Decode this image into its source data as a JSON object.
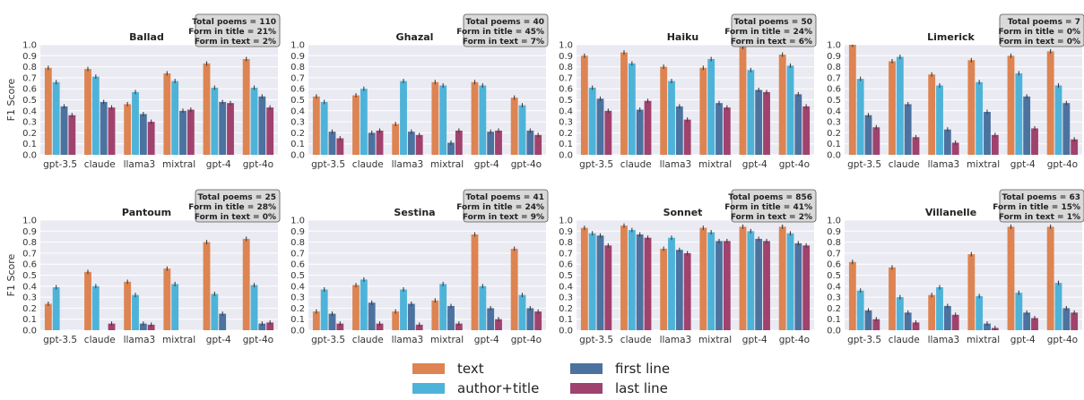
{
  "series_meta": [
    {
      "key": "text",
      "name": "text",
      "color": "#dd8452"
    },
    {
      "key": "author_title",
      "name": "author+title",
      "color": "#4eb3d8"
    },
    {
      "key": "first_line",
      "name": "first line",
      "color": "#4c72a0"
    },
    {
      "key": "last_line",
      "name": "last line",
      "color": "#a0426e"
    }
  ],
  "chart_data": [
    {
      "type": "bar",
      "title": "Ballad",
      "ylabel": "F1 Score",
      "ylim": [
        0,
        1.0
      ],
      "yticks": [
        "0.0",
        "0.1",
        "0.2",
        "0.3",
        "0.4",
        "0.5",
        "0.6",
        "0.7",
        "0.8",
        "0.9",
        "1.0"
      ],
      "categories": [
        "gpt-3.5",
        "claude",
        "llama3",
        "mixtral",
        "gpt-4",
        "gpt-4o"
      ],
      "info": [
        "Total poems = 110",
        "Form in title = 21%",
        "Form in text = 2%"
      ],
      "series": [
        {
          "name": "text",
          "values": [
            0.79,
            0.78,
            0.46,
            0.74,
            0.83,
            0.87
          ]
        },
        {
          "name": "author+title",
          "values": [
            0.66,
            0.71,
            0.57,
            0.67,
            0.61,
            0.61
          ]
        },
        {
          "name": "first line",
          "values": [
            0.44,
            0.48,
            0.37,
            0.4,
            0.48,
            0.53
          ]
        },
        {
          "name": "last line",
          "values": [
            0.36,
            0.43,
            0.3,
            0.41,
            0.47,
            0.43
          ]
        }
      ]
    },
    {
      "type": "bar",
      "title": "Ghazal",
      "ylabel": "",
      "ylim": [
        0,
        1.0
      ],
      "yticks": [
        "0.0",
        "0.1",
        "0.2",
        "0.3",
        "0.4",
        "0.5",
        "0.6",
        "0.7",
        "0.8",
        "0.9",
        "1.0"
      ],
      "categories": [
        "gpt-3.5",
        "claude",
        "llama3",
        "mixtral",
        "gpt-4",
        "gpt-4o"
      ],
      "info": [
        "Total poems = 40",
        "Form in title = 45%",
        "Form in text = 7%"
      ],
      "series": [
        {
          "name": "text",
          "values": [
            0.53,
            0.54,
            0.28,
            0.66,
            0.66,
            0.52
          ]
        },
        {
          "name": "author+title",
          "values": [
            0.48,
            0.6,
            0.67,
            0.63,
            0.63,
            0.45
          ]
        },
        {
          "name": "first line",
          "values": [
            0.21,
            0.2,
            0.21,
            0.11,
            0.21,
            0.22
          ]
        },
        {
          "name": "last line",
          "values": [
            0.15,
            0.22,
            0.18,
            0.22,
            0.22,
            0.18
          ]
        }
      ]
    },
    {
      "type": "bar",
      "title": "Haiku",
      "ylabel": "",
      "ylim": [
        0,
        1.0
      ],
      "yticks": [
        "0.0",
        "0.1",
        "0.2",
        "0.3",
        "0.4",
        "0.5",
        "0.6",
        "0.7",
        "0.8",
        "0.9",
        "1.0"
      ],
      "categories": [
        "gpt-3.5",
        "claude",
        "llama3",
        "mixtral",
        "gpt-4",
        "gpt-4o"
      ],
      "info": [
        "Total poems = 50",
        "Form in title = 24%",
        "Form in text = 6%"
      ],
      "series": [
        {
          "name": "text",
          "values": [
            0.9,
            0.93,
            0.8,
            0.79,
            0.98,
            0.91
          ]
        },
        {
          "name": "author+title",
          "values": [
            0.61,
            0.83,
            0.67,
            0.87,
            0.77,
            0.81
          ]
        },
        {
          "name": "first line",
          "values": [
            0.51,
            0.41,
            0.44,
            0.47,
            0.59,
            0.55
          ]
        },
        {
          "name": "last line",
          "values": [
            0.4,
            0.49,
            0.32,
            0.43,
            0.57,
            0.44
          ]
        }
      ]
    },
    {
      "type": "bar",
      "title": "Limerick",
      "ylabel": "",
      "ylim": [
        0,
        1.0
      ],
      "yticks": [
        "0.0",
        "0.1",
        "0.2",
        "0.3",
        "0.4",
        "0.5",
        "0.6",
        "0.7",
        "0.8",
        "0.9",
        "1.0"
      ],
      "categories": [
        "gpt-3.5",
        "claude",
        "llama3",
        "mixtral",
        "gpt-4",
        "gpt-4o"
      ],
      "info": [
        "Total poems = 7",
        "Form in title = 0%",
        "Form in text = 0%"
      ],
      "series": [
        {
          "name": "text",
          "values": [
            1.0,
            0.85,
            0.73,
            0.86,
            0.9,
            0.94
          ]
        },
        {
          "name": "author+title",
          "values": [
            0.69,
            0.89,
            0.63,
            0.66,
            0.74,
            0.63
          ]
        },
        {
          "name": "first line",
          "values": [
            0.36,
            0.46,
            0.23,
            0.39,
            0.53,
            0.47
          ]
        },
        {
          "name": "last line",
          "values": [
            0.25,
            0.16,
            0.11,
            0.18,
            0.24,
            0.14
          ]
        }
      ]
    },
    {
      "type": "bar",
      "title": "Pantoum",
      "ylabel": "F1 Score",
      "ylim": [
        0,
        1.0
      ],
      "yticks": [
        "0.0",
        "0.1",
        "0.2",
        "0.3",
        "0.4",
        "0.5",
        "0.6",
        "0.7",
        "0.8",
        "0.9",
        "1.0"
      ],
      "categories": [
        "gpt-3.5",
        "claude",
        "llama3",
        "mixtral",
        "gpt-4",
        "gpt-4o"
      ],
      "info": [
        "Total poems = 25",
        "Form in title = 28%",
        "Form in text = 0%"
      ],
      "series": [
        {
          "name": "text",
          "values": [
            0.24,
            0.53,
            0.44,
            0.56,
            0.8,
            0.83
          ]
        },
        {
          "name": "author+title",
          "values": [
            0.39,
            0.4,
            0.32,
            0.42,
            0.33,
            0.41
          ]
        },
        {
          "name": "first line",
          "values": [
            0.0,
            0.0,
            0.06,
            0.0,
            0.15,
            0.06
          ]
        },
        {
          "name": "last line",
          "values": [
            0.0,
            0.06,
            0.05,
            0.0,
            0.0,
            0.07
          ]
        }
      ]
    },
    {
      "type": "bar",
      "title": "Sestina",
      "ylabel": "",
      "ylim": [
        0,
        1.0
      ],
      "yticks": [
        "0.0",
        "0.1",
        "0.2",
        "0.3",
        "0.4",
        "0.5",
        "0.6",
        "0.7",
        "0.8",
        "0.9",
        "1.0"
      ],
      "categories": [
        "gpt-3.5",
        "claude",
        "llama3",
        "mixtral",
        "gpt-4",
        "gpt-4o"
      ],
      "info": [
        "Total poems = 41",
        "Form in title = 24%",
        "Form in text = 9%"
      ],
      "series": [
        {
          "name": "text",
          "values": [
            0.17,
            0.41,
            0.17,
            0.27,
            0.87,
            0.74
          ]
        },
        {
          "name": "author+title",
          "values": [
            0.37,
            0.46,
            0.37,
            0.42,
            0.4,
            0.32
          ]
        },
        {
          "name": "first line",
          "values": [
            0.15,
            0.25,
            0.24,
            0.22,
            0.2,
            0.2
          ]
        },
        {
          "name": "last line",
          "values": [
            0.06,
            0.06,
            0.05,
            0.06,
            0.1,
            0.17
          ]
        }
      ]
    },
    {
      "type": "bar",
      "title": "Sonnet",
      "ylabel": "",
      "ylim": [
        0,
        1.0
      ],
      "yticks": [
        "0.0",
        "0.1",
        "0.2",
        "0.3",
        "0.4",
        "0.5",
        "0.6",
        "0.7",
        "0.8",
        "0.9",
        "1.0"
      ],
      "categories": [
        "gpt-3.5",
        "claude",
        "llama3",
        "mixtral",
        "gpt-4",
        "gpt-4o"
      ],
      "info": [
        "Total poems = 856",
        "Form in title = 41%",
        "Form in text = 2%"
      ],
      "series": [
        {
          "name": "text",
          "values": [
            0.93,
            0.95,
            0.74,
            0.93,
            0.94,
            0.94
          ]
        },
        {
          "name": "author+title",
          "values": [
            0.88,
            0.91,
            0.84,
            0.89,
            0.9,
            0.88
          ]
        },
        {
          "name": "first line",
          "values": [
            0.86,
            0.87,
            0.73,
            0.81,
            0.83,
            0.79
          ]
        },
        {
          "name": "last line",
          "values": [
            0.77,
            0.84,
            0.7,
            0.81,
            0.81,
            0.77
          ]
        }
      ]
    },
    {
      "type": "bar",
      "title": "Villanelle",
      "ylabel": "",
      "ylim": [
        0,
        1.0
      ],
      "yticks": [
        "0.0",
        "0.1",
        "0.2",
        "0.3",
        "0.4",
        "0.5",
        "0.6",
        "0.7",
        "0.8",
        "0.9",
        "1.0"
      ],
      "categories": [
        "gpt-3.5",
        "claude",
        "llama3",
        "mixtral",
        "gpt-4",
        "gpt-4o"
      ],
      "info": [
        "Total poems = 63",
        "Form in title = 15%",
        "Form in text = 1%"
      ],
      "series": [
        {
          "name": "text",
          "values": [
            0.62,
            0.57,
            0.32,
            0.69,
            0.94,
            0.94
          ]
        },
        {
          "name": "author+title",
          "values": [
            0.36,
            0.3,
            0.39,
            0.31,
            0.34,
            0.43
          ]
        },
        {
          "name": "first line",
          "values": [
            0.18,
            0.16,
            0.22,
            0.06,
            0.16,
            0.2
          ]
        },
        {
          "name": "last line",
          "values": [
            0.1,
            0.07,
            0.14,
            0.02,
            0.11,
            0.16
          ]
        }
      ]
    }
  ]
}
